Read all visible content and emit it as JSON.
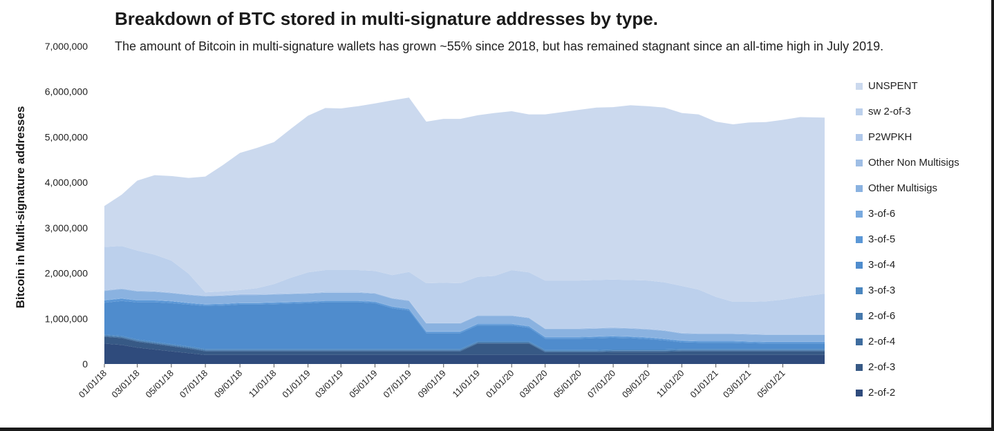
{
  "chart_data": {
    "type": "area",
    "stacked": true,
    "title": "Breakdown of BTC stored in multi-signature addresses by type.",
    "subtitle": "The amount of Bitcoin in multi-signature wallets has grown ~55% since 2018, but has remained stagnant since an all-time high in July 2019.",
    "ylabel": "Bitcoin in Multi-signature addresses",
    "xlabel": "",
    "ylim": [
      0,
      7000000
    ],
    "yticks": [
      0,
      1000000,
      2000000,
      3000000,
      4000000,
      5000000,
      6000000,
      7000000
    ],
    "ytick_labels": [
      "0",
      "1,000,000",
      "2,000,000",
      "3,000,000",
      "4,000,000",
      "5,000,000",
      "6,000,000",
      "7,000,000"
    ],
    "xlim": [
      "01/01/18",
      "07/15/21"
    ],
    "xtick_labels": [
      "01/01/18",
      "03/01/18",
      "05/01/18",
      "07/01/18",
      "09/01/18",
      "11/01/18",
      "01/01/19",
      "03/01/19",
      "05/01/19",
      "07/01/19",
      "09/01/19",
      "11/01/19",
      "01/01/20",
      "03/01/20",
      "05/01/20",
      "07/01/20",
      "09/01/20",
      "11/01/20",
      "01/01/21",
      "03/01/21",
      "05/01/21"
    ],
    "legend_position": "right",
    "x": [
      "01/01/18",
      "02/01/18",
      "03/01/18",
      "04/01/18",
      "05/01/18",
      "06/01/18",
      "07/01/18",
      "08/01/18",
      "09/01/18",
      "10/01/18",
      "11/01/18",
      "12/01/18",
      "01/01/19",
      "02/01/19",
      "03/01/19",
      "04/01/19",
      "05/01/19",
      "06/01/19",
      "07/01/19",
      "08/01/19",
      "09/01/19",
      "10/01/19",
      "11/01/19",
      "12/01/19",
      "01/01/20",
      "02/01/20",
      "03/01/20",
      "04/01/20",
      "05/01/20",
      "06/01/20",
      "07/01/20",
      "08/01/20",
      "09/01/20",
      "10/01/20",
      "11/01/20",
      "12/01/20",
      "01/01/21",
      "02/01/21",
      "03/01/21",
      "04/01/21",
      "05/01/21",
      "06/01/21",
      "07/15/21"
    ],
    "series": [
      {
        "name": "2-of-2",
        "color": "#2f4b7c",
        "values": [
          450000,
          420000,
          360000,
          320000,
          280000,
          240000,
          200000,
          200000,
          200000,
          200000,
          200000,
          200000,
          200000,
          200000,
          200000,
          200000,
          200000,
          200000,
          200000,
          200000,
          200000,
          200000,
          200000,
          200000,
          200000,
          200000,
          200000,
          200000,
          200000,
          200000,
          200000,
          200000,
          200000,
          200000,
          200000,
          200000,
          200000,
          200000,
          200000,
          200000,
          200000,
          200000,
          200000
        ]
      },
      {
        "name": "2-of-3",
        "color": "#375985",
        "values": [
          150000,
          150000,
          130000,
          120000,
          110000,
          100000,
          80000,
          80000,
          80000,
          80000,
          80000,
          80000,
          80000,
          80000,
          80000,
          80000,
          80000,
          80000,
          80000,
          80000,
          80000,
          80000,
          250000,
          250000,
          250000,
          250000,
          60000,
          60000,
          60000,
          60000,
          70000,
          70000,
          70000,
          70000,
          80000,
          80000,
          80000,
          80000,
          80000,
          80000,
          80000,
          80000,
          80000
        ]
      },
      {
        "name": "2-of-4",
        "color": "#3e6c9e",
        "values": [
          20000,
          20000,
          20000,
          20000,
          20000,
          20000,
          20000,
          20000,
          20000,
          20000,
          20000,
          20000,
          20000,
          20000,
          20000,
          20000,
          20000,
          20000,
          20000,
          20000,
          20000,
          20000,
          20000,
          20000,
          20000,
          20000,
          20000,
          20000,
          20000,
          20000,
          20000,
          20000,
          20000,
          20000,
          20000,
          20000,
          20000,
          20000,
          20000,
          20000,
          20000,
          20000,
          20000
        ]
      },
      {
        "name": "2-of-6",
        "color": "#4679ad",
        "values": [
          10000,
          10000,
          10000,
          10000,
          10000,
          10000,
          10000,
          10000,
          10000,
          10000,
          10000,
          10000,
          10000,
          10000,
          10000,
          10000,
          10000,
          10000,
          10000,
          10000,
          10000,
          10000,
          10000,
          10000,
          10000,
          10000,
          10000,
          10000,
          10000,
          10000,
          10000,
          10000,
          10000,
          10000,
          10000,
          10000,
          10000,
          10000,
          10000,
          10000,
          10000,
          10000,
          10000
        ]
      },
      {
        "name": "3-of-3",
        "color": "#4a86bf",
        "values": [
          20000,
          20000,
          20000,
          20000,
          20000,
          20000,
          20000,
          20000,
          20000,
          20000,
          20000,
          20000,
          20000,
          20000,
          20000,
          20000,
          20000,
          20000,
          20000,
          20000,
          20000,
          20000,
          20000,
          20000,
          20000,
          20000,
          20000,
          20000,
          20000,
          20000,
          20000,
          20000,
          20000,
          20000,
          20000,
          20000,
          20000,
          20000,
          20000,
          20000,
          20000,
          20000,
          20000
        ]
      },
      {
        "name": "3-of-4",
        "color": "#4f8ccd",
        "values": [
          700000,
          770000,
          820000,
          870000,
          900000,
          920000,
          950000,
          960000,
          980000,
          980000,
          990000,
          1000000,
          1010000,
          1030000,
          1030000,
          1030000,
          1010000,
          900000,
          850000,
          350000,
          350000,
          350000,
          350000,
          350000,
          350000,
          300000,
          250000,
          250000,
          250000,
          260000,
          260000,
          250000,
          230000,
          200000,
          150000,
          140000,
          140000,
          140000,
          130000,
          120000,
          120000,
          120000,
          120000
        ]
      },
      {
        "name": "3-of-5",
        "color": "#5b97d6",
        "values": [
          50000,
          50000,
          40000,
          40000,
          40000,
          30000,
          30000,
          30000,
          30000,
          30000,
          30000,
          30000,
          30000,
          30000,
          30000,
          30000,
          30000,
          30000,
          30000,
          30000,
          30000,
          30000,
          30000,
          30000,
          30000,
          30000,
          30000,
          30000,
          30000,
          30000,
          30000,
          30000,
          30000,
          30000,
          30000,
          30000,
          30000,
          30000,
          30000,
          30000,
          30000,
          30000,
          30000
        ]
      },
      {
        "name": "3-of-6",
        "color": "#79aadf",
        "values": [
          10000,
          10000,
          10000,
          10000,
          10000,
          10000,
          10000,
          10000,
          10000,
          10000,
          10000,
          10000,
          10000,
          10000,
          10000,
          10000,
          10000,
          10000,
          10000,
          10000,
          10000,
          10000,
          10000,
          10000,
          10000,
          10000,
          10000,
          10000,
          10000,
          10000,
          10000,
          10000,
          10000,
          10000,
          10000,
          10000,
          10000,
          10000,
          10000,
          10000,
          10000,
          10000,
          10000
        ]
      },
      {
        "name": "Other Multisigs",
        "color": "#8ab2e0",
        "values": [
          200000,
          200000,
          190000,
          180000,
          170000,
          170000,
          170000,
          170000,
          170000,
          170000,
          170000,
          170000,
          170000,
          170000,
          170000,
          170000,
          170000,
          170000,
          170000,
          170000,
          170000,
          170000,
          170000,
          170000,
          170000,
          170000,
          170000,
          170000,
          170000,
          170000,
          170000,
          170000,
          170000,
          170000,
          150000,
          150000,
          150000,
          150000,
          150000,
          150000,
          150000,
          150000,
          150000
        ]
      },
      {
        "name": "Other Non Multisigs",
        "color": "#9fbee5",
        "values": [
          10000,
          10000,
          10000,
          10000,
          10000,
          10000,
          10000,
          10000,
          10000,
          10000,
          10000,
          10000,
          10000,
          10000,
          10000,
          10000,
          10000,
          10000,
          10000,
          10000,
          10000,
          10000,
          10000,
          10000,
          10000,
          10000,
          10000,
          10000,
          10000,
          10000,
          10000,
          10000,
          10000,
          10000,
          10000,
          10000,
          10000,
          10000,
          10000,
          10000,
          10000,
          10000,
          10000
        ]
      },
      {
        "name": "P2WPKH",
        "color": "#b0c8ea",
        "values": [
          10000,
          10000,
          10000,
          10000,
          10000,
          10000,
          10000,
          10000,
          10000,
          10000,
          10000,
          10000,
          10000,
          10000,
          10000,
          10000,
          10000,
          10000,
          10000,
          10000,
          10000,
          10000,
          10000,
          10000,
          10000,
          10000,
          10000,
          10000,
          10000,
          10000,
          10000,
          10000,
          10000,
          10000,
          10000,
          10000,
          10000,
          10000,
          10000,
          10000,
          10000,
          10000,
          10000
        ]
      },
      {
        "name": "sw 2-of-3",
        "color": "#bcd0ec",
        "values": [
          950000,
          930000,
          880000,
          800000,
          700000,
          450000,
          70000,
          80000,
          90000,
          130000,
          210000,
          340000,
          450000,
          480000,
          480000,
          480000,
          480000,
          500000,
          620000,
          870000,
          880000,
          870000,
          840000,
          860000,
          990000,
          990000,
          1050000,
          1050000,
          1050000,
          1050000,
          1050000,
          1050000,
          1060000,
          1050000,
          1030000,
          960000,
          800000,
          690000,
          700000,
          720000,
          760000,
          820000,
          890000
        ]
      },
      {
        "name": "UNSPENT",
        "color": "#cbd9ee",
        "values": [
          900000,
          1130000,
          1540000,
          1750000,
          1860000,
          2110000,
          2550000,
          2780000,
          3020000,
          3090000,
          3130000,
          3280000,
          3450000,
          3570000,
          3560000,
          3610000,
          3690000,
          3850000,
          3840000,
          3560000,
          3610000,
          3620000,
          3560000,
          3590000,
          3500000,
          3480000,
          3660000,
          3710000,
          3760000,
          3800000,
          3800000,
          3850000,
          3840000,
          3850000,
          3810000,
          3860000,
          3860000,
          3910000,
          3950000,
          3950000,
          3960000,
          3960000,
          3880000
        ]
      }
    ]
  }
}
